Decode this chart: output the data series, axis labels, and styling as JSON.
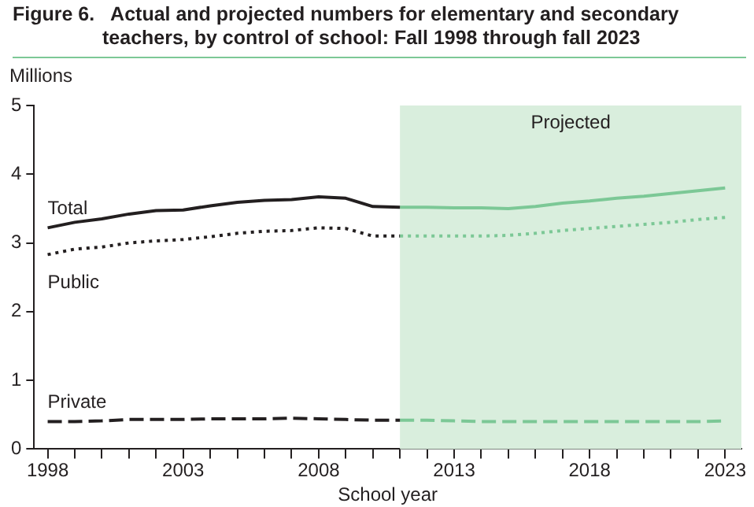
{
  "chart_data": {
    "type": "line",
    "title": "Figure 6.   Actual and projected numbers for elementary and secondary teachers, by control of school: Fall 1998 through fall 2023",
    "ylabel": "Millions",
    "xlabel": "School year",
    "marker": "none",
    "grid": false,
    "xlim": [
      1997.5,
      2023.6
    ],
    "ylim": [
      0,
      5
    ],
    "yticks": [
      0,
      1,
      2,
      3,
      4,
      5
    ],
    "xticks": [
      1998,
      {
        "value": 1999,
        "label": null
      },
      {
        "value": 2000,
        "label": null
      },
      {
        "value": 2001,
        "label": null
      },
      {
        "value": 2002,
        "label": null
      },
      2003,
      {
        "value": 2004,
        "label": null
      },
      {
        "value": 2005,
        "label": null
      },
      {
        "value": 2006,
        "label": null
      },
      {
        "value": 2007,
        "label": null
      },
      2008,
      {
        "value": 2009,
        "label": null
      },
      {
        "value": 2010,
        "label": null
      },
      {
        "value": 2011,
        "label": null
      },
      {
        "value": 2012,
        "label": null
      },
      2013,
      {
        "value": 2014,
        "label": null
      },
      {
        "value": 2015,
        "label": null
      },
      {
        "value": 2016,
        "label": null
      },
      {
        "value": 2017,
        "label": null
      },
      2018,
      {
        "value": 2019,
        "label": null
      },
      {
        "value": 2020,
        "label": null
      },
      {
        "value": 2021,
        "label": null
      },
      {
        "value": 2022,
        "label": null
      },
      2023
    ],
    "bands": [
      {
        "axis": "x",
        "from": 2011,
        "to": 2023.6,
        "label": "Projected",
        "color": "#d9eedd"
      }
    ],
    "series": [
      {
        "name": "Total",
        "color": "#231f20",
        "line_style": "solid",
        "x": [
          1998,
          1999,
          2000,
          2001,
          2002,
          2003,
          2004,
          2005,
          2006,
          2007,
          2008,
          2009,
          2010,
          2011
        ],
        "values": [
          3.22,
          3.3,
          3.35,
          3.42,
          3.47,
          3.48,
          3.54,
          3.59,
          3.62,
          3.63,
          3.67,
          3.65,
          3.53,
          3.52
        ]
      },
      {
        "name": "Public",
        "color": "#231f20",
        "line_style": "dotted",
        "x": [
          1998,
          1999,
          2000,
          2001,
          2002,
          2003,
          2004,
          2005,
          2006,
          2007,
          2008,
          2009,
          2010,
          2011
        ],
        "values": [
          2.83,
          2.91,
          2.94,
          3.0,
          3.03,
          3.05,
          3.09,
          3.14,
          3.17,
          3.18,
          3.22,
          3.21,
          3.1,
          3.1
        ]
      },
      {
        "name": "Private",
        "color": "#231f20",
        "line_style": "dashed",
        "x": [
          1998,
          1999,
          2000,
          2001,
          2002,
          2003,
          2004,
          2005,
          2006,
          2007,
          2008,
          2009,
          2010,
          2011
        ],
        "values": [
          0.4,
          0.4,
          0.41,
          0.43,
          0.43,
          0.43,
          0.44,
          0.44,
          0.44,
          0.45,
          0.44,
          0.43,
          0.42,
          0.42
        ]
      },
      {
        "color": "#7cc896",
        "line_style": "solid",
        "x": [
          2011,
          2012,
          2013,
          2014,
          2015,
          2016,
          2017,
          2018,
          2019,
          2020,
          2021,
          2022,
          2023
        ],
        "values": [
          3.52,
          3.52,
          3.51,
          3.51,
          3.5,
          3.53,
          3.58,
          3.61,
          3.65,
          3.68,
          3.72,
          3.76,
          3.8
        ]
      },
      {
        "color": "#7cc896",
        "line_style": "dotted",
        "x": [
          2011,
          2012,
          2013,
          2014,
          2015,
          2016,
          2017,
          2018,
          2019,
          2020,
          2021,
          2022,
          2023
        ],
        "values": [
          3.1,
          3.1,
          3.1,
          3.1,
          3.11,
          3.14,
          3.18,
          3.21,
          3.24,
          3.27,
          3.3,
          3.34,
          3.37
        ]
      },
      {
        "color": "#7cc896",
        "line_style": "dashed",
        "x": [
          2011,
          2012,
          2013,
          2014,
          2015,
          2016,
          2017,
          2018,
          2019,
          2020,
          2021,
          2022,
          2023
        ],
        "values": [
          0.42,
          0.42,
          0.41,
          0.4,
          0.4,
          0.4,
          0.4,
          0.4,
          0.4,
          0.4,
          0.4,
          0.4,
          0.41
        ]
      }
    ]
  }
}
